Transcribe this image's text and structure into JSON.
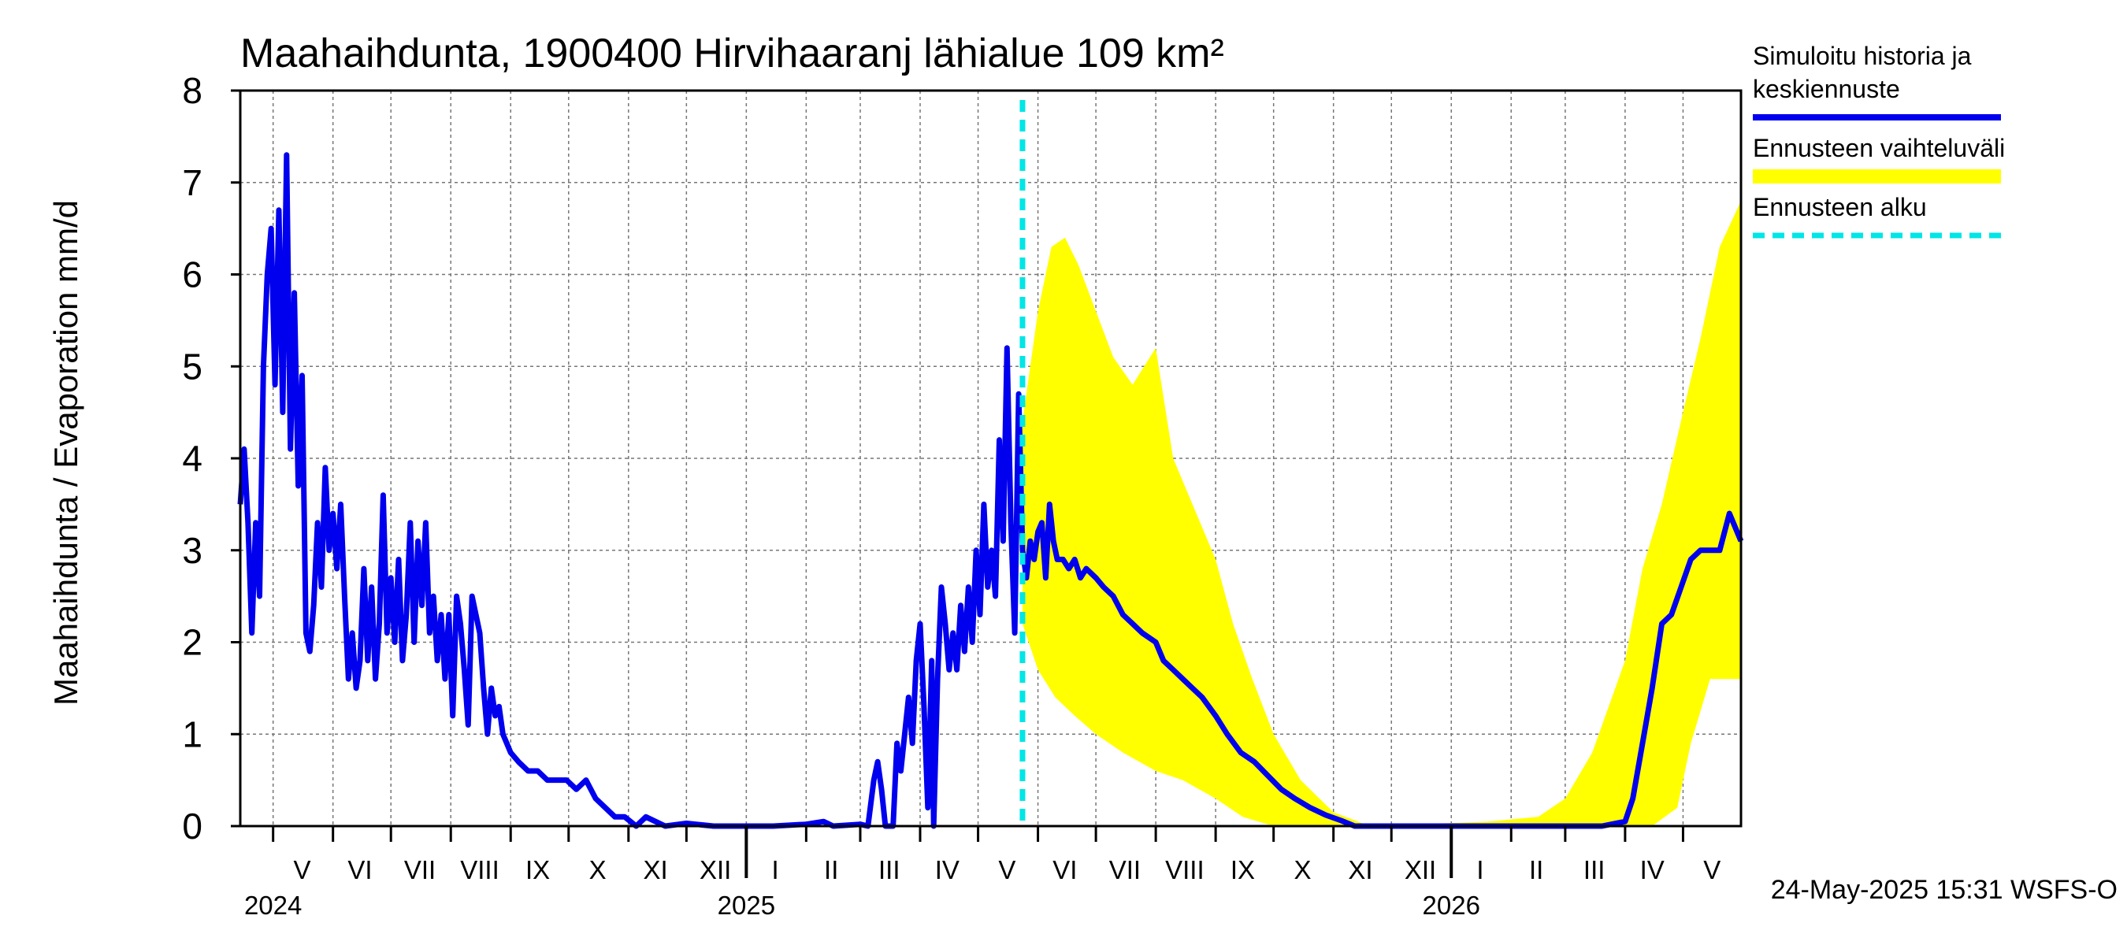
{
  "chart_data": {
    "type": "line",
    "title": "Maahaihdunta, 1900400 Hirvihaaranj lähialue 109 km²",
    "ylabel": "Maahaihdunta / Evaporation   mm/d",
    "ylim": [
      0,
      8
    ],
    "yticks": [
      "0",
      "1",
      "2",
      "3",
      "4",
      "5",
      "6",
      "7",
      "8"
    ],
    "xlim": [
      "2024-04-14",
      "2026-05-31"
    ],
    "month_labels": [
      {
        "label": "V",
        "date": "2024-05-16"
      },
      {
        "label": "VI",
        "date": "2024-06-15"
      },
      {
        "label": "VII",
        "date": "2024-07-16"
      },
      {
        "label": "VIII",
        "date": "2024-08-16"
      },
      {
        "label": "IX",
        "date": "2024-09-15"
      },
      {
        "label": "X",
        "date": "2024-10-16"
      },
      {
        "label": "XI",
        "date": "2024-11-15"
      },
      {
        "label": "XII",
        "date": "2024-12-16"
      },
      {
        "label": "I",
        "date": "2025-01-16"
      },
      {
        "label": "II",
        "date": "2025-02-14"
      },
      {
        "label": "III",
        "date": "2025-03-16"
      },
      {
        "label": "IV",
        "date": "2025-04-15"
      },
      {
        "label": "V",
        "date": "2025-05-16"
      },
      {
        "label": "VI",
        "date": "2025-06-15"
      },
      {
        "label": "VII",
        "date": "2025-07-16"
      },
      {
        "label": "VIII",
        "date": "2025-08-16"
      },
      {
        "label": "IX",
        "date": "2025-09-15"
      },
      {
        "label": "X",
        "date": "2025-10-16"
      },
      {
        "label": "XI",
        "date": "2025-11-15"
      },
      {
        "label": "XII",
        "date": "2025-12-16"
      },
      {
        "label": "I",
        "date": "2026-01-16"
      },
      {
        "label": "II",
        "date": "2026-02-14"
      },
      {
        "label": "III",
        "date": "2026-03-16"
      },
      {
        "label": "IV",
        "date": "2026-04-15"
      },
      {
        "label": "V",
        "date": "2026-05-16"
      }
    ],
    "year_labels": [
      {
        "label": "2024",
        "date": "2024-05-01"
      },
      {
        "label": "2025",
        "date": "2025-01-01"
      },
      {
        "label": "2026",
        "date": "2026-01-01"
      }
    ],
    "forecast_start": "2025-05-24",
    "legend": {
      "position": "right",
      "items": [
        {
          "label_lines": [
            "Simuloitu historia ja",
            "keskiennuste"
          ],
          "color": "#0000ee",
          "style": "solid"
        },
        {
          "label_lines": [
            "Ennusteen vaihteluväli"
          ],
          "color": "#ffff00",
          "style": "band"
        },
        {
          "label_lines": [
            "Ennusteen alku"
          ],
          "color": "#00e5e5",
          "style": "dashed"
        }
      ]
    },
    "series": [
      {
        "name": "Simuloitu historia ja keskiennuste",
        "color": "#0000ee",
        "points": [
          [
            "2024-04-14",
            3.5
          ],
          [
            "2024-04-16",
            4.1
          ],
          [
            "2024-04-18",
            3.3
          ],
          [
            "2024-04-20",
            2.1
          ],
          [
            "2024-04-22",
            3.3
          ],
          [
            "2024-04-24",
            2.5
          ],
          [
            "2024-04-26",
            5.0
          ],
          [
            "2024-04-28",
            6.0
          ],
          [
            "2024-04-30",
            6.5
          ],
          [
            "2024-05-02",
            4.8
          ],
          [
            "2024-05-04",
            6.7
          ],
          [
            "2024-05-06",
            4.5
          ],
          [
            "2024-05-08",
            7.3
          ],
          [
            "2024-05-10",
            4.1
          ],
          [
            "2024-05-12",
            5.8
          ],
          [
            "2024-05-14",
            3.7
          ],
          [
            "2024-05-16",
            4.9
          ],
          [
            "2024-05-18",
            2.1
          ],
          [
            "2024-05-20",
            1.9
          ],
          [
            "2024-05-22",
            2.4
          ],
          [
            "2024-05-24",
            3.3
          ],
          [
            "2024-05-26",
            2.6
          ],
          [
            "2024-05-28",
            3.9
          ],
          [
            "2024-05-30",
            3.0
          ],
          [
            "2024-06-01",
            3.4
          ],
          [
            "2024-06-03",
            2.8
          ],
          [
            "2024-06-05",
            3.5
          ],
          [
            "2024-06-07",
            2.5
          ],
          [
            "2024-06-09",
            1.6
          ],
          [
            "2024-06-11",
            2.1
          ],
          [
            "2024-06-13",
            1.5
          ],
          [
            "2024-06-15",
            1.8
          ],
          [
            "2024-06-17",
            2.8
          ],
          [
            "2024-06-19",
            1.8
          ],
          [
            "2024-06-21",
            2.6
          ],
          [
            "2024-06-23",
            1.6
          ],
          [
            "2024-06-25",
            2.2
          ],
          [
            "2024-06-27",
            3.6
          ],
          [
            "2024-06-29",
            2.1
          ],
          [
            "2024-07-01",
            2.7
          ],
          [
            "2024-07-03",
            2.0
          ],
          [
            "2024-07-05",
            2.9
          ],
          [
            "2024-07-07",
            1.8
          ],
          [
            "2024-07-09",
            2.3
          ],
          [
            "2024-07-11",
            3.3
          ],
          [
            "2024-07-13",
            2.0
          ],
          [
            "2024-07-15",
            3.1
          ],
          [
            "2024-07-17",
            2.4
          ],
          [
            "2024-07-19",
            3.3
          ],
          [
            "2024-07-21",
            2.1
          ],
          [
            "2024-07-23",
            2.5
          ],
          [
            "2024-07-25",
            1.8
          ],
          [
            "2024-07-27",
            2.3
          ],
          [
            "2024-07-29",
            1.6
          ],
          [
            "2024-07-31",
            2.3
          ],
          [
            "2024-08-02",
            1.2
          ],
          [
            "2024-08-04",
            2.5
          ],
          [
            "2024-08-06",
            2.2
          ],
          [
            "2024-08-08",
            1.7
          ],
          [
            "2024-08-10",
            1.1
          ],
          [
            "2024-08-12",
            2.5
          ],
          [
            "2024-08-14",
            2.3
          ],
          [
            "2024-08-16",
            2.1
          ],
          [
            "2024-08-18",
            1.5
          ],
          [
            "2024-08-20",
            1.0
          ],
          [
            "2024-08-22",
            1.5
          ],
          [
            "2024-08-24",
            1.2
          ],
          [
            "2024-08-26",
            1.3
          ],
          [
            "2024-08-28",
            1.0
          ],
          [
            "2024-08-30",
            0.9
          ],
          [
            "2024-09-01",
            0.8
          ],
          [
            "2024-09-05",
            0.7
          ],
          [
            "2024-09-10",
            0.6
          ],
          [
            "2024-09-15",
            0.6
          ],
          [
            "2024-09-20",
            0.5
          ],
          [
            "2024-09-25",
            0.5
          ],
          [
            "2024-09-30",
            0.5
          ],
          [
            "2024-10-05",
            0.4
          ],
          [
            "2024-10-10",
            0.5
          ],
          [
            "2024-10-15",
            0.3
          ],
          [
            "2024-10-20",
            0.2
          ],
          [
            "2024-10-25",
            0.1
          ],
          [
            "2024-10-30",
            0.1
          ],
          [
            "2024-11-05",
            0.0
          ],
          [
            "2024-11-10",
            0.1
          ],
          [
            "2024-11-15",
            0.05
          ],
          [
            "2024-11-20",
            0.0
          ],
          [
            "2024-12-01",
            0.03
          ],
          [
            "2024-12-15",
            0.0
          ],
          [
            "2025-01-15",
            0.0
          ],
          [
            "2025-02-01",
            0.02
          ],
          [
            "2025-02-10",
            0.05
          ],
          [
            "2025-02-15",
            0.0
          ],
          [
            "2025-03-01",
            0.02
          ],
          [
            "2025-03-05",
            0.0
          ],
          [
            "2025-03-08",
            0.5
          ],
          [
            "2025-03-10",
            0.7
          ],
          [
            "2025-03-12",
            0.4
          ],
          [
            "2025-03-14",
            0.0
          ],
          [
            "2025-03-18",
            0.0
          ],
          [
            "2025-03-20",
            0.9
          ],
          [
            "2025-03-22",
            0.6
          ],
          [
            "2025-03-24",
            1.0
          ],
          [
            "2025-03-26",
            1.4
          ],
          [
            "2025-03-28",
            0.9
          ],
          [
            "2025-03-30",
            1.8
          ],
          [
            "2025-04-01",
            2.2
          ],
          [
            "2025-04-03",
            1.3
          ],
          [
            "2025-04-05",
            0.2
          ],
          [
            "2025-04-07",
            1.8
          ],
          [
            "2025-04-08",
            0.0
          ],
          [
            "2025-04-10",
            1.6
          ],
          [
            "2025-04-12",
            2.6
          ],
          [
            "2025-04-14",
            2.2
          ],
          [
            "2025-04-16",
            1.7
          ],
          [
            "2025-04-18",
            2.1
          ],
          [
            "2025-04-20",
            1.7
          ],
          [
            "2025-04-22",
            2.4
          ],
          [
            "2025-04-24",
            1.9
          ],
          [
            "2025-04-26",
            2.6
          ],
          [
            "2025-04-28",
            2.0
          ],
          [
            "2025-04-30",
            3.0
          ],
          [
            "2025-05-02",
            2.3
          ],
          [
            "2025-05-04",
            3.5
          ],
          [
            "2025-05-06",
            2.6
          ],
          [
            "2025-05-08",
            3.0
          ],
          [
            "2025-05-10",
            2.5
          ],
          [
            "2025-05-12",
            4.2
          ],
          [
            "2025-05-14",
            3.1
          ],
          [
            "2025-05-16",
            5.2
          ],
          [
            "2025-05-18",
            3.3
          ],
          [
            "2025-05-20",
            2.1
          ],
          [
            "2025-05-22",
            4.7
          ],
          [
            "2025-05-24",
            3.0
          ],
          [
            "2025-05-26",
            2.7
          ],
          [
            "2025-05-28",
            3.1
          ],
          [
            "2025-05-30",
            2.9
          ],
          [
            "2025-06-01",
            3.2
          ],
          [
            "2025-06-03",
            3.3
          ],
          [
            "2025-06-05",
            2.7
          ],
          [
            "2025-06-07",
            3.5
          ],
          [
            "2025-06-09",
            3.1
          ],
          [
            "2025-06-11",
            2.9
          ],
          [
            "2025-06-14",
            2.9
          ],
          [
            "2025-06-17",
            2.8
          ],
          [
            "2025-06-20",
            2.9
          ],
          [
            "2025-06-23",
            2.7
          ],
          [
            "2025-06-26",
            2.8
          ],
          [
            "2025-07-01",
            2.7
          ],
          [
            "2025-07-05",
            2.6
          ],
          [
            "2025-07-10",
            2.5
          ],
          [
            "2025-07-15",
            2.3
          ],
          [
            "2025-07-20",
            2.2
          ],
          [
            "2025-07-25",
            2.1
          ],
          [
            "2025-08-01",
            2.0
          ],
          [
            "2025-08-05",
            1.8
          ],
          [
            "2025-08-10",
            1.7
          ],
          [
            "2025-08-15",
            1.6
          ],
          [
            "2025-08-20",
            1.5
          ],
          [
            "2025-08-25",
            1.4
          ],
          [
            "2025-09-01",
            1.2
          ],
          [
            "2025-09-07",
            1.0
          ],
          [
            "2025-09-14",
            0.8
          ],
          [
            "2025-09-21",
            0.7
          ],
          [
            "2025-09-28",
            0.55
          ],
          [
            "2025-10-05",
            0.4
          ],
          [
            "2025-10-12",
            0.3
          ],
          [
            "2025-10-20",
            0.2
          ],
          [
            "2025-10-28",
            0.12
          ],
          [
            "2025-11-05",
            0.06
          ],
          [
            "2025-11-12",
            0.0
          ],
          [
            "2026-03-20",
            0.0
          ],
          [
            "2026-04-01",
            0.05
          ],
          [
            "2026-04-05",
            0.3
          ],
          [
            "2026-04-10",
            0.9
          ],
          [
            "2026-04-15",
            1.5
          ],
          [
            "2026-04-20",
            2.2
          ],
          [
            "2026-04-25",
            2.3
          ],
          [
            "2026-04-30",
            2.6
          ],
          [
            "2026-05-05",
            2.9
          ],
          [
            "2026-05-10",
            3.0
          ],
          [
            "2026-05-15",
            3.0
          ],
          [
            "2026-05-20",
            3.0
          ],
          [
            "2026-05-25",
            3.4
          ],
          [
            "2026-05-31",
            3.1
          ]
        ]
      },
      {
        "name": "Ennusteen vaihteluväli",
        "color": "#ffff00",
        "upper": [
          [
            "2025-05-24",
            4.4
          ],
          [
            "2025-06-01",
            5.6
          ],
          [
            "2025-06-08",
            6.3
          ],
          [
            "2025-06-15",
            6.4
          ],
          [
            "2025-06-22",
            6.1
          ],
          [
            "2025-07-01",
            5.6
          ],
          [
            "2025-07-10",
            5.1
          ],
          [
            "2025-07-20",
            4.8
          ],
          [
            "2025-08-01",
            5.2
          ],
          [
            "2025-08-10",
            4.0
          ],
          [
            "2025-08-20",
            3.5
          ],
          [
            "2025-09-01",
            2.9
          ],
          [
            "2025-09-10",
            2.2
          ],
          [
            "2025-09-20",
            1.6
          ],
          [
            "2025-10-01",
            1.0
          ],
          [
            "2025-10-15",
            0.5
          ],
          [
            "2025-11-01",
            0.15
          ],
          [
            "2025-11-20",
            0.0
          ],
          [
            "2026-01-20",
            0.05
          ],
          [
            "2026-02-15",
            0.1
          ],
          [
            "2026-03-01",
            0.3
          ],
          [
            "2026-03-15",
            0.8
          ],
          [
            "2026-04-01",
            1.8
          ],
          [
            "2026-04-10",
            2.8
          ],
          [
            "2026-04-20",
            3.5
          ],
          [
            "2026-05-01",
            4.5
          ],
          [
            "2026-05-10",
            5.3
          ],
          [
            "2026-05-20",
            6.3
          ],
          [
            "2026-05-31",
            6.8
          ]
        ],
        "lower": [
          [
            "2025-05-24",
            2.2
          ],
          [
            "2025-06-01",
            1.7
          ],
          [
            "2025-06-10",
            1.4
          ],
          [
            "2025-06-20",
            1.2
          ],
          [
            "2025-07-01",
            1.0
          ],
          [
            "2025-07-15",
            0.8
          ],
          [
            "2025-08-01",
            0.6
          ],
          [
            "2025-08-15",
            0.5
          ],
          [
            "2025-09-01",
            0.3
          ],
          [
            "2025-09-15",
            0.1
          ],
          [
            "2025-10-01",
            0.0
          ],
          [
            "2026-03-20",
            0.0
          ],
          [
            "2026-04-15",
            0.0
          ],
          [
            "2026-04-28",
            0.2
          ],
          [
            "2026-05-05",
            0.9
          ],
          [
            "2026-05-15",
            1.6
          ],
          [
            "2026-05-31",
            1.6
          ]
        ]
      }
    ],
    "footer": "24-May-2025 15:31 WSFS-O"
  }
}
